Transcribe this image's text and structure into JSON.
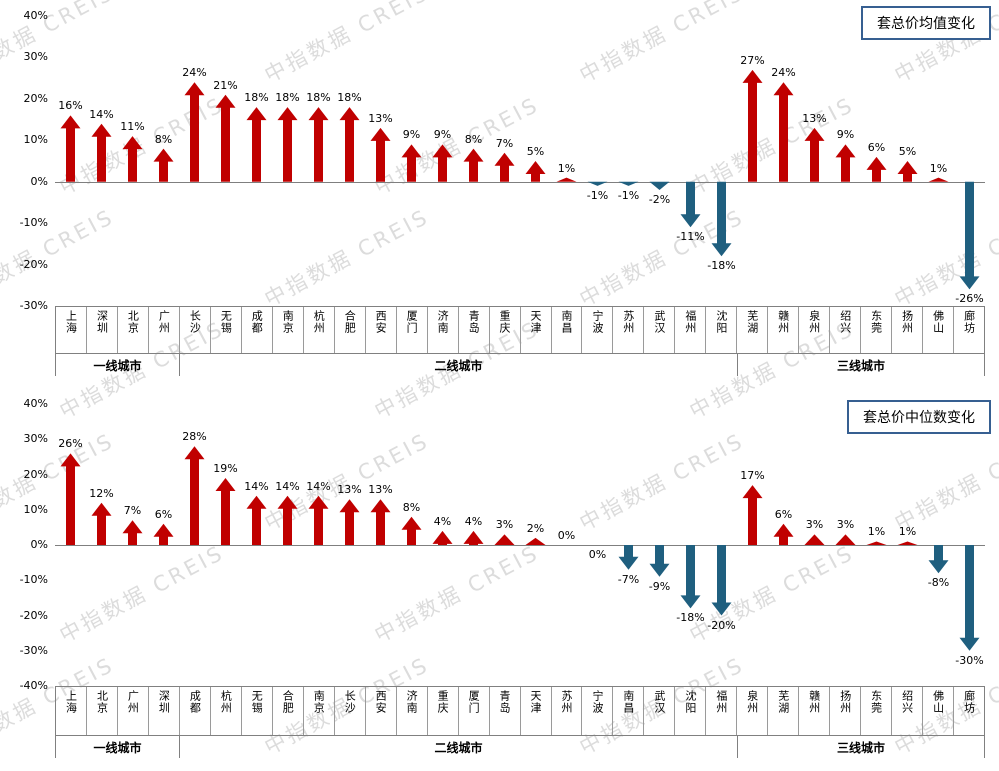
{
  "watermark": {
    "text": "中指数据  CREIS",
    "color": "#dcdcdc"
  },
  "colors": {
    "positive": "#c00000",
    "negative": "#1f5f7f",
    "axis": "#7f7f7f"
  },
  "chart_data": [
    {
      "type": "bar",
      "title": "套总价均值变化",
      "ylabel": "",
      "xlabel": "",
      "unit": "%",
      "ylim": [
        -30,
        40
      ],
      "ytick_step": 10,
      "legend": "none",
      "grid": "off",
      "groups": [
        {
          "label": "一线城市",
          "cities": [
            "上海",
            "深圳",
            "北京",
            "广州"
          ],
          "values": [
            16,
            14,
            11,
            8
          ]
        },
        {
          "label": "二线城市",
          "cities": [
            "长沙",
            "无锡",
            "成都",
            "南京",
            "杭州",
            "合肥",
            "西安",
            "厦门",
            "济南",
            "青岛",
            "重庆",
            "天津",
            "南昌",
            "宁波",
            "苏州",
            "武汉",
            "福州",
            "沈阳"
          ],
          "values": [
            24,
            21,
            18,
            18,
            18,
            18,
            13,
            9,
            9,
            8,
            7,
            5,
            1,
            -1,
            -1,
            -2,
            -11,
            -18
          ]
        },
        {
          "label": "三线城市",
          "cities": [
            "芜湖",
            "赣州",
            "泉州",
            "绍兴",
            "东莞",
            "扬州",
            "佛山",
            "廊坊"
          ],
          "values": [
            27,
            24,
            13,
            9,
            6,
            5,
            1,
            -26
          ]
        }
      ]
    },
    {
      "type": "bar",
      "title": "套总价中位数变化",
      "ylabel": "",
      "xlabel": "",
      "unit": "%",
      "ylim": [
        -40,
        40
      ],
      "ytick_step": 10,
      "legend": "none",
      "grid": "off",
      "groups": [
        {
          "label": "一线城市",
          "cities": [
            "上海",
            "北京",
            "广州",
            "深圳"
          ],
          "values": [
            26,
            12,
            7,
            6
          ]
        },
        {
          "label": "二线城市",
          "cities": [
            "成都",
            "杭州",
            "无锡",
            "合肥",
            "南京",
            "长沙",
            "西安",
            "济南",
            "重庆",
            "厦门",
            "青岛",
            "天津",
            "苏州",
            "宁波",
            "南昌",
            "武汉",
            "沈阳",
            "福州"
          ],
          "values": [
            28,
            19,
            14,
            14,
            14,
            13,
            13,
            8,
            4,
            4,
            3,
            2,
            0,
            0,
            -7,
            -9,
            -18,
            -20
          ]
        },
        {
          "label": "三线城市",
          "cities": [
            "泉州",
            "芜湖",
            "赣州",
            "扬州",
            "东莞",
            "绍兴",
            "佛山",
            "廊坊"
          ],
          "values": [
            17,
            6,
            3,
            3,
            1,
            1,
            -8,
            -30
          ]
        }
      ]
    }
  ]
}
